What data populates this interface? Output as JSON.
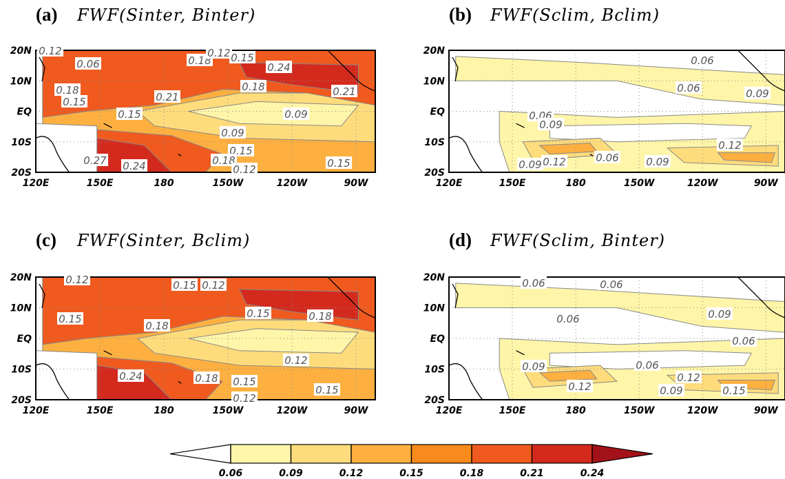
{
  "panels": [
    {
      "label": "(a)",
      "title": "FWF(Sinter, Binter)",
      "contour_labels": [
        "0.12",
        "0.18",
        "0.12",
        "0.15",
        "0.24",
        "0.18",
        "0.15",
        "0.21",
        "0.18",
        "0.21",
        "0.15",
        "0.09",
        "0.09",
        "0.15",
        "0.18",
        "0.27",
        "0.24",
        "0.12",
        "0.15"
      ]
    },
    {
      "label": "(b)",
      "title": "FWF(Sclim, Bclim)",
      "contour_labels": [
        "0.06",
        "0.06",
        "0.06",
        "0.09",
        "0.06",
        "0.09",
        "0.12",
        "0.09",
        "0.12",
        "0.06",
        "0.09"
      ]
    },
    {
      "label": "(c)",
      "title": "FWF(Sinter, Bclim)",
      "contour_labels": [
        "0.12",
        "0.15",
        "0.12",
        "0.15",
        "0.15",
        "0.18",
        "0.18",
        "0.12",
        "0.18",
        "0.15",
        "0.24",
        "0.15",
        "0.12"
      ]
    },
    {
      "label": "(d)",
      "title": "FWF(Sclim, Binter)",
      "contour_labels": [
        "0.06",
        "0.06",
        "0.09",
        "0.06",
        "0.06",
        "0.09",
        "0.06",
        "0.12",
        "0.12",
        "0.09",
        "0.15"
      ]
    }
  ],
  "lon_labels": [
    "120E",
    "150E",
    "180",
    "150W",
    "120W",
    "90W"
  ],
  "lat_labels": [
    "20N",
    "10N",
    "EQ",
    "10S",
    "20S"
  ],
  "colorbar": {
    "ticks": [
      0.06,
      0.09,
      0.12,
      0.15,
      0.18,
      0.21,
      0.24
    ],
    "colors": [
      "#ffffff",
      "#fff5a8",
      "#fedc7c",
      "#fdb040",
      "#f98a1c",
      "#f05a1e",
      "#d42a1e",
      "#a3121a"
    ]
  }
}
